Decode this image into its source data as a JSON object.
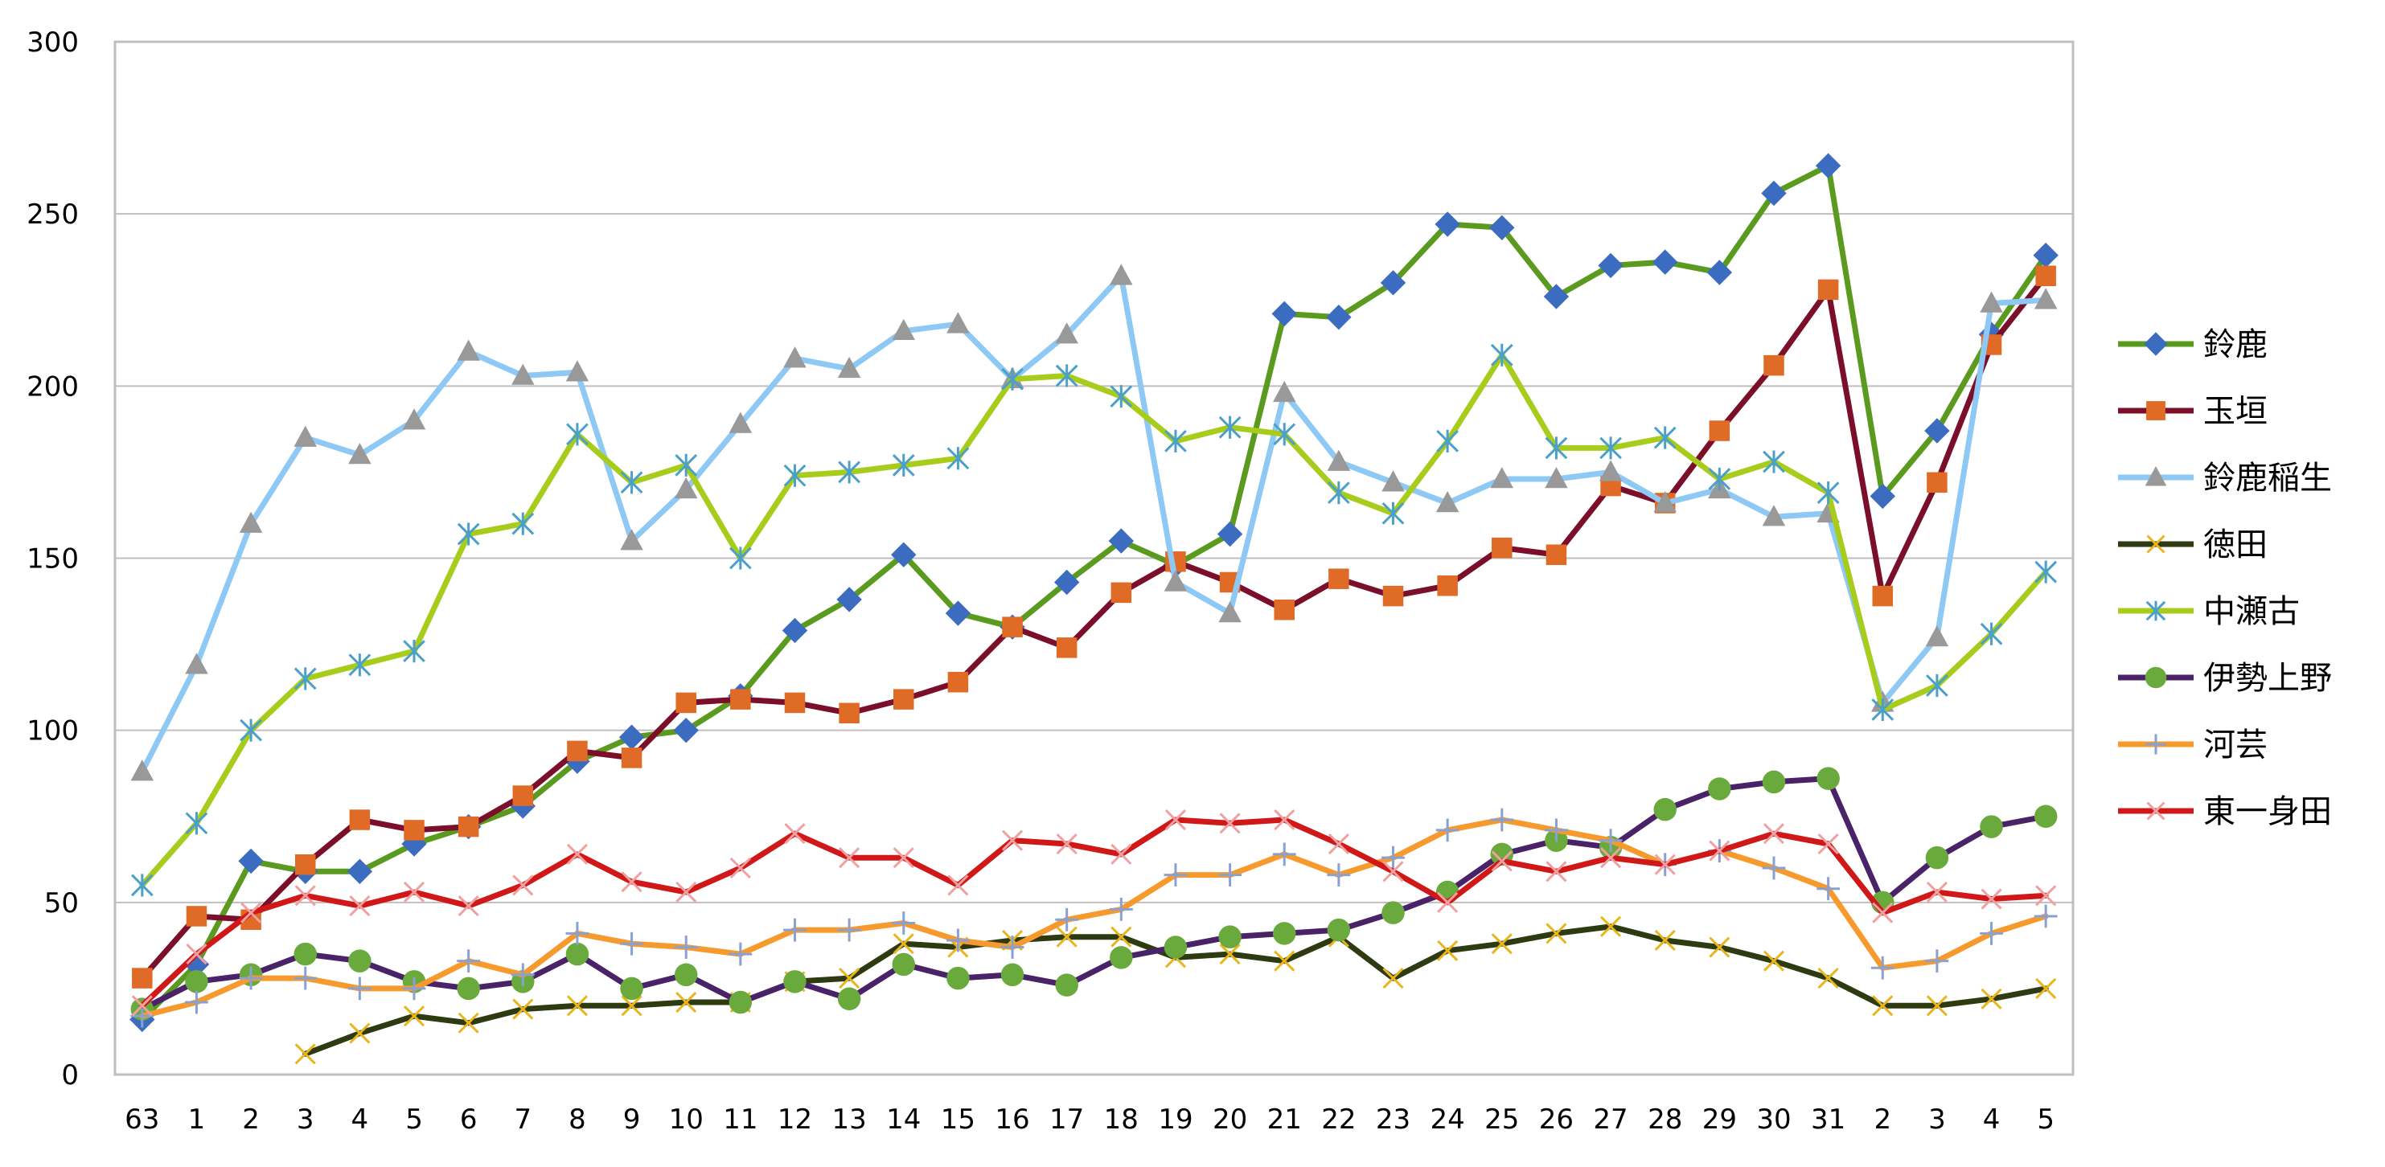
{
  "chart_data": {
    "type": "line",
    "title": "",
    "xlabel": "",
    "ylabel": "",
    "ylim": [
      0,
      300
    ],
    "yticks": [
      0,
      50,
      100,
      150,
      200,
      250,
      300
    ],
    "grid": true,
    "legend_position": "right",
    "categories": [
      "63",
      "1",
      "2",
      "3",
      "4",
      "5",
      "6",
      "7",
      "8",
      "9",
      "10",
      "11",
      "12",
      "13",
      "14",
      "15",
      "16",
      "17",
      "18",
      "19",
      "20",
      "21",
      "22",
      "23",
      "24",
      "25",
      "26",
      "27",
      "28",
      "29",
      "30",
      "31",
      "2",
      "3",
      "4",
      "5"
    ],
    "series": [
      {
        "name": "鈴鹿",
        "color": "#5a9a1f",
        "marker": "diamond",
        "marker_color": "#3b6cc0",
        "values": [
          16,
          32,
          62,
          59,
          59,
          67,
          72,
          78,
          91,
          98,
          100,
          110,
          129,
          138,
          151,
          134,
          130,
          143,
          155,
          148,
          157,
          221,
          220,
          230,
          247,
          246,
          226,
          235,
          236,
          233,
          256,
          264,
          168,
          187,
          215,
          238
        ]
      },
      {
        "name": "玉垣",
        "color": "#7b0f2a",
        "marker": "square",
        "marker_color": "#e06b26",
        "values": [
          28,
          46,
          45,
          61,
          74,
          71,
          72,
          81,
          94,
          92,
          108,
          109,
          108,
          105,
          109,
          114,
          130,
          124,
          140,
          149,
          143,
          135,
          144,
          139,
          142,
          153,
          151,
          171,
          166,
          187,
          206,
          228,
          139,
          172,
          212,
          232
        ]
      },
      {
        "name": "鈴鹿稲生",
        "color": "#8ec9f5",
        "marker": "triangle",
        "marker_color": "#999999",
        "values": [
          88,
          119,
          160,
          185,
          180,
          190,
          210,
          203,
          204,
          155,
          170,
          189,
          208,
          205,
          216,
          218,
          202,
          215,
          232,
          143,
          134,
          198,
          178,
          172,
          166,
          173,
          173,
          175,
          166,
          170,
          162,
          163,
          108,
          127,
          224,
          225
        ]
      },
      {
        "name": "徳田",
        "color": "#2e3a0f",
        "marker": "x",
        "marker_color": "#e8b51e",
        "values": [
          null,
          null,
          null,
          6,
          12,
          17,
          15,
          19,
          20,
          20,
          21,
          21,
          27,
          28,
          38,
          37,
          39,
          40,
          40,
          34,
          35,
          33,
          40,
          28,
          36,
          38,
          41,
          43,
          39,
          37,
          33,
          28,
          20,
          20,
          22,
          25
        ]
      },
      {
        "name": "中瀬古",
        "color": "#a8cc1c",
        "marker": "star",
        "marker_color": "#4aa0c8",
        "values": [
          55,
          73,
          100,
          115,
          119,
          123,
          157,
          160,
          186,
          172,
          177,
          150,
          174,
          175,
          177,
          179,
          202,
          203,
          197,
          184,
          188,
          186,
          169,
          163,
          184,
          209,
          182,
          182,
          185,
          173,
          178,
          169,
          106,
          113,
          128,
          146
        ]
      },
      {
        "name": "伊勢上野",
        "color": "#4a2268",
        "marker": "circle",
        "marker_color": "#6aaa3c",
        "values": [
          19,
          27,
          29,
          35,
          33,
          27,
          25,
          27,
          35,
          25,
          29,
          21,
          27,
          22,
          32,
          28,
          29,
          26,
          34,
          37,
          40,
          41,
          42,
          47,
          53,
          64,
          68,
          66,
          77,
          83,
          85,
          86,
          50,
          63,
          72,
          75
        ]
      },
      {
        "name": "河芸",
        "color": "#f79a2e",
        "marker": "plus",
        "marker_color": "#8aa0d0",
        "values": [
          17,
          21,
          28,
          28,
          25,
          25,
          33,
          29,
          41,
          38,
          37,
          35,
          42,
          42,
          44,
          39,
          37,
          45,
          48,
          58,
          58,
          64,
          58,
          63,
          71,
          74,
          71,
          68,
          61,
          65,
          60,
          54,
          31,
          33,
          41,
          46
        ]
      },
      {
        "name": "東一身田",
        "color": "#d01818",
        "marker": "x",
        "marker_color": "#f0a0a0",
        "values": [
          20,
          35,
          47,
          52,
          49,
          53,
          49,
          55,
          64,
          56,
          53,
          60,
          70,
          63,
          63,
          55,
          68,
          67,
          64,
          74,
          73,
          74,
          67,
          59,
          50,
          62,
          59,
          63,
          61,
          65,
          70,
          67,
          47,
          53,
          51,
          52
        ]
      }
    ]
  }
}
